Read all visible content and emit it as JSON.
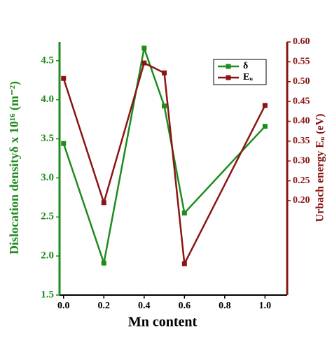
{
  "chart_data": {
    "type": "line",
    "x_label": "Mn content",
    "y_label": "Dislocation densityδ x 10¹⁶ (m⁻²)",
    "y2_label": "Urbach energy Eᵤ (eV)",
    "x": [
      0.0,
      0.2,
      0.4,
      0.5,
      0.6,
      1.0
    ],
    "series": [
      {
        "name": "δ",
        "color": "#1e8c1e",
        "values": [
          3.44,
          1.91,
          4.66,
          3.92,
          2.55,
          3.66
        ]
      },
      {
        "name": "Eᵤ",
        "color": "#8b1515",
        "axis": "y2",
        "values": [
          0.508,
          0.195,
          0.547,
          0.522,
          0.041,
          0.44
        ]
      }
    ],
    "xlim": [
      -0.02,
      1.11
    ],
    "xticks": [
      {
        "value": 0,
        "label": "0.0"
      },
      0.2,
      0.4,
      0.6,
      0.8,
      {
        "value": 1,
        "label": "1.0"
      }
    ],
    "ylim": [
      1.5,
      4.74
    ],
    "yticks": [
      1.5,
      {
        "value": 2,
        "label": "2.0"
      },
      2.5,
      {
        "value": 3,
        "label": "3.0"
      },
      3.5,
      {
        "value": 4,
        "label": "4.0"
      },
      4.5
    ],
    "y2lim": [
      -0.038,
      0.6
    ],
    "y2ticks": [
      {
        "value": 0.2,
        "label": "0.20"
      },
      0.25,
      {
        "value": 0.3,
        "label": "0.30"
      },
      0.35,
      {
        "value": 0.4,
        "label": "0.40"
      },
      0.45,
      {
        "value": 0.5,
        "label": "0.50"
      },
      0.55,
      {
        "value": 0.6,
        "label": "0.60"
      }
    ],
    "legend": "upper-right"
  }
}
